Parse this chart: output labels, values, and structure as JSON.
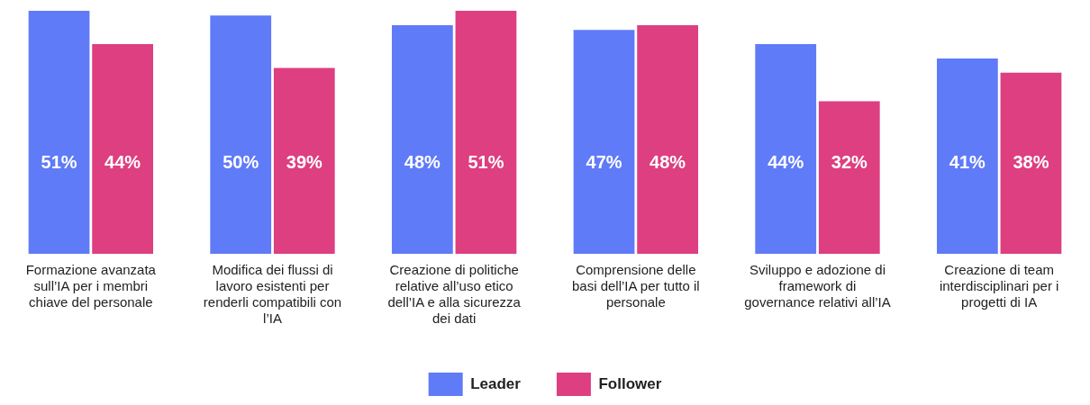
{
  "chart_data": {
    "type": "bar",
    "categories": [
      "Formazione avanzata sull’IA per i membri chiave del personale",
      "Modifica dei flussi di lavoro esistenti per renderli compatibili con l’IA",
      "Creazione di politiche relative all’uso etico dell’IA e alla sicurezza dei dati",
      "Comprensione delle basi dell’IA per tutto il personale",
      "Sviluppo e adozione di framework di governance relativi all’IA",
      "Creazione di team interdisciplinari per i progetti di IA"
    ],
    "series": [
      {
        "name": "Leader",
        "color": "#607bf7",
        "values": [
          51,
          50,
          48,
          47,
          44,
          41
        ],
        "value_labels": [
          "51%",
          "50%",
          "48%",
          "47%",
          "44%",
          "41%"
        ]
      },
      {
        "name": "Follower",
        "color": "#dd3f80",
        "values": [
          44,
          39,
          51,
          48,
          32,
          38
        ],
        "value_labels": [
          "44%",
          "39%",
          "51%",
          "48%",
          "32%",
          "38%"
        ]
      }
    ],
    "legend": "bottom",
    "grid": false
  }
}
